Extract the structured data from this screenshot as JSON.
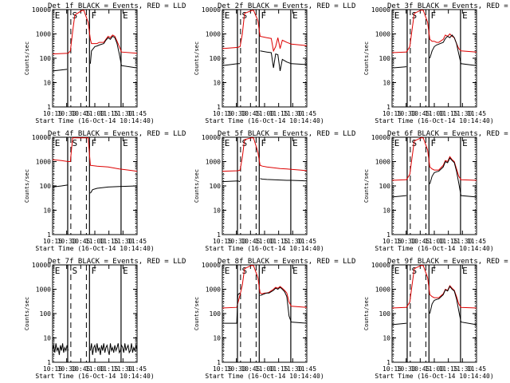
{
  "colors": {
    "events": "#000000",
    "lld": "#dd0000",
    "background": "#ffffff"
  },
  "common": {
    "title_suffix": "BLACK = Events, RED = LLD",
    "ylabel": "Counts/sec",
    "xlabel": "Start Time (16-Oct-14 10:14:40)",
    "x_ticks": [
      "10:15",
      "10:30",
      "10:45",
      "11:00",
      "11:15",
      "11:30",
      "11:45"
    ],
    "y_ticks": [
      "1",
      "10",
      "100",
      "1000",
      "10000"
    ],
    "y_scale": "log",
    "ylim": [
      1,
      10000
    ],
    "xlim_minutes": [
      0,
      38
    ]
  },
  "chart_data": [
    {
      "type": "line",
      "title": "Det 1f",
      "markers": [
        "E",
        "S",
        "F",
        "E"
      ],
      "series": [
        {
          "color": "#dd0000",
          "x": [
            0,
            7,
            8,
            9,
            10,
            13,
            14,
            16,
            17,
            17.5,
            20,
            21,
            23,
            24,
            25,
            26,
            27,
            28,
            29,
            30,
            31,
            38
          ],
          "y": [
            150,
            160,
            200,
            1200,
            6000,
            9000,
            9500,
            3000,
            600,
            400,
            400,
            450,
            450,
            600,
            800,
            700,
            900,
            800,
            500,
            300,
            180,
            160
          ]
        },
        {
          "color": "#000000",
          "x": [
            0,
            6.5,
            7,
            16.5,
            17,
            17.5,
            19,
            20,
            21,
            23,
            24,
            25,
            26,
            27,
            28,
            29,
            30,
            31,
            38
          ],
          "y": [
            30,
            35,
            null,
            null,
            60,
            200,
            300,
            320,
            350,
            400,
            550,
            700,
            600,
            800,
            700,
            400,
            150,
            50,
            40
          ]
        }
      ]
    },
    {
      "type": "line",
      "title": "Det 2f",
      "markers": [
        "E",
        "S",
        "F",
        "E"
      ],
      "series": [
        {
          "color": "#dd0000",
          "x": [
            0,
            7,
            8,
            9,
            10,
            13,
            14,
            16,
            17,
            20,
            22,
            23,
            24,
            25,
            26,
            27,
            29,
            31,
            38
          ],
          "y": [
            250,
            280,
            300,
            1000,
            7000,
            9000,
            9500,
            3500,
            800,
            700,
            650,
            200,
            300,
            700,
            250,
            550,
            450,
            380,
            330
          ]
        },
        {
          "color": "#000000",
          "x": [
            0,
            7,
            8,
            9,
            10,
            13,
            14,
            16,
            17,
            20,
            22,
            23,
            24,
            25,
            26,
            27,
            29,
            31,
            38
          ],
          "y": [
            50,
            60,
            60,
            null,
            null,
            null,
            null,
            null,
            200,
            180,
            170,
            40,
            150,
            140,
            30,
            90,
            70,
            60,
            55
          ]
        }
      ]
    },
    {
      "type": "line",
      "title": "Det 3f",
      "markers": [
        "E",
        "S",
        "F",
        "E"
      ],
      "series": [
        {
          "color": "#dd0000",
          "x": [
            0,
            6.5,
            8,
            9,
            10,
            13,
            14,
            16,
            17,
            18,
            19,
            20,
            21,
            23,
            24,
            25,
            26,
            27,
            28,
            29,
            30,
            31,
            38
          ],
          "y": [
            170,
            180,
            300,
            1500,
            7000,
            9500,
            9500,
            3000,
            600,
            500,
            500,
            450,
            450,
            600,
            900,
            800,
            1000,
            800,
            700,
            400,
            250,
            200,
            180
          ]
        },
        {
          "color": "#000000",
          "x": [
            0,
            6.5,
            7,
            16.5,
            17,
            18,
            19,
            20,
            21,
            23,
            24,
            25,
            26,
            27,
            28,
            29,
            30,
            31,
            38
          ],
          "y": [
            40,
            45,
            null,
            null,
            100,
            200,
            300,
            350,
            380,
            450,
            650,
            800,
            700,
            900,
            700,
            400,
            150,
            60,
            50
          ]
        }
      ]
    },
    {
      "type": "line",
      "title": "Det 4f",
      "markers": [
        "E",
        "S",
        "F",
        "E"
      ],
      "series": [
        {
          "color": "#dd0000",
          "x": [
            0,
            4,
            7,
            8,
            9,
            16,
            17,
            20,
            25,
            30,
            34,
            38
          ],
          "y": [
            1200,
            1100,
            1000,
            1000,
            9500,
            9500,
            700,
            650,
            600,
            500,
            450,
            400
          ]
        },
        {
          "color": "#000000",
          "x": [
            0,
            4,
            7,
            16.5,
            17,
            18,
            20,
            25,
            30,
            38
          ],
          "y": [
            90,
            100,
            110,
            null,
            50,
            70,
            80,
            90,
            95,
            100
          ]
        }
      ]
    },
    {
      "type": "line",
      "title": "Det 5f",
      "markers": [
        "E",
        "S",
        "F",
        "E"
      ],
      "series": [
        {
          "color": "#dd0000",
          "x": [
            0,
            7,
            8,
            9,
            10,
            13,
            14,
            16,
            17,
            18,
            20,
            23,
            26,
            29,
            31,
            35,
            38
          ],
          "y": [
            400,
            420,
            450,
            1500,
            8000,
            9500,
            9500,
            2500,
            700,
            650,
            600,
            560,
            520,
            500,
            480,
            450,
            420
          ]
        },
        {
          "color": "#000000",
          "x": [
            0,
            7,
            8,
            9,
            16,
            17,
            18,
            20,
            23,
            26,
            29,
            31,
            35,
            38
          ],
          "y": [
            150,
            160,
            150,
            null,
            null,
            200,
            190,
            185,
            180,
            175,
            170,
            170,
            165,
            160
          ]
        }
      ]
    },
    {
      "type": "line",
      "title": "Det 6f",
      "markers": [
        "E",
        "S",
        "F",
        "E"
      ],
      "series": [
        {
          "color": "#dd0000",
          "x": [
            0,
            6.5,
            8,
            9,
            10,
            13,
            14,
            16,
            17,
            18,
            19,
            20,
            21,
            23,
            24,
            25,
            26,
            27,
            28,
            29,
            30,
            31,
            38
          ],
          "y": [
            170,
            180,
            300,
            1500,
            7000,
            9500,
            9500,
            3000,
            600,
            500,
            450,
            450,
            450,
            700,
            1100,
            1000,
            1600,
            1200,
            1000,
            500,
            250,
            180,
            170
          ]
        },
        {
          "color": "#000000",
          "x": [
            0,
            6.5,
            7,
            16.5,
            17,
            18,
            19,
            20,
            21,
            23,
            24,
            25,
            26,
            27,
            28,
            29,
            30,
            31,
            38
          ],
          "y": [
            35,
            40,
            null,
            null,
            120,
            250,
            350,
            380,
            400,
            600,
            1000,
            900,
            1400,
            1100,
            900,
            400,
            130,
            40,
            35
          ]
        }
      ]
    },
    {
      "type": "line",
      "title": "Det 7f",
      "markers": [
        "E",
        "S",
        "F",
        "E"
      ],
      "series": [
        {
          "color": "#000000",
          "x": [
            0,
            0.5,
            1,
            1.5,
            2,
            2.5,
            3,
            3.5,
            4,
            4.5,
            5,
            5.5,
            6,
            6.5,
            7
          ],
          "y": [
            3,
            5,
            2.5,
            6,
            3,
            4,
            2,
            5,
            3,
            6,
            2.5,
            4,
            3,
            5,
            3
          ]
        },
        {
          "color": "#000000",
          "x": [
            17,
            17.5,
            18,
            18.5,
            19,
            19.5,
            20,
            20.5,
            21,
            21.5,
            22,
            22.5,
            23,
            23.5,
            24,
            24.5,
            25,
            25.5,
            26,
            26.5,
            27,
            27.5,
            28,
            28.5,
            29,
            29.5,
            30,
            30.5,
            31,
            31.5,
            32,
            32.5,
            33,
            33.5,
            34,
            34.5,
            35,
            35.5,
            36,
            36.5,
            37,
            37.5,
            38
          ],
          "y": [
            3,
            6,
            2,
            4,
            5,
            2.5,
            6,
            3,
            4,
            2,
            5,
            3,
            6,
            2.5,
            4,
            5,
            3,
            2,
            6,
            3,
            4,
            2.5,
            5,
            3,
            4,
            6,
            2.5,
            3,
            5,
            4,
            2.5,
            6,
            3,
            4,
            5,
            2.5,
            3,
            6,
            2.5,
            4,
            3,
            5,
            3
          ]
        }
      ]
    },
    {
      "type": "line",
      "title": "Det 8f",
      "markers": [
        "E",
        "S",
        "F",
        "E"
      ],
      "series": [
        {
          "color": "#dd0000",
          "x": [
            0,
            6.5,
            8,
            9,
            10,
            13,
            14,
            16,
            17,
            18,
            19,
            20,
            21,
            23,
            24,
            25,
            26,
            27,
            28,
            29,
            30,
            31,
            38
          ],
          "y": [
            170,
            180,
            600,
            1500,
            7000,
            9500,
            9500,
            3000,
            700,
            650,
            700,
            700,
            750,
            1000,
            1200,
            1100,
            1300,
            1100,
            900,
            700,
            300,
            200,
            180
          ]
        },
        {
          "color": "#000000",
          "x": [
            0,
            6.5,
            7,
            8,
            9,
            10,
            13,
            14,
            16,
            17,
            18,
            19,
            20,
            21,
            23,
            24,
            25,
            26,
            27,
            28,
            29,
            30,
            31,
            38
          ],
          "y": [
            40,
            40,
            600,
            700,
            null,
            null,
            null,
            null,
            null,
            550,
            600,
            650,
            700,
            700,
            900,
            1100,
            1000,
            1200,
            1000,
            800,
            500,
            80,
            45,
            40
          ]
        }
      ]
    },
    {
      "type": "line",
      "title": "Det 9f",
      "markers": [
        "E",
        "S",
        "F",
        "E"
      ],
      "series": [
        {
          "color": "#dd0000",
          "x": [
            0,
            6.5,
            8,
            9,
            10,
            13,
            14,
            16,
            17,
            18,
            19,
            20,
            21,
            23,
            24,
            25,
            26,
            27,
            28,
            29,
            30,
            31,
            38
          ],
          "y": [
            170,
            180,
            300,
            1500,
            7000,
            9500,
            9500,
            3000,
            600,
            500,
            450,
            450,
            450,
            650,
            1000,
            900,
            1400,
            1100,
            900,
            500,
            250,
            180,
            170
          ]
        },
        {
          "color": "#000000",
          "x": [
            0,
            6.5,
            7,
            16.5,
            17,
            18,
            19,
            20,
            21,
            23,
            24,
            25,
            26,
            27,
            28,
            29,
            30,
            31,
            38
          ],
          "y": [
            35,
            40,
            null,
            null,
            100,
            250,
            350,
            380,
            400,
            600,
            950,
            850,
            1300,
            1000,
            850,
            400,
            130,
            45,
            35
          ]
        }
      ]
    }
  ]
}
